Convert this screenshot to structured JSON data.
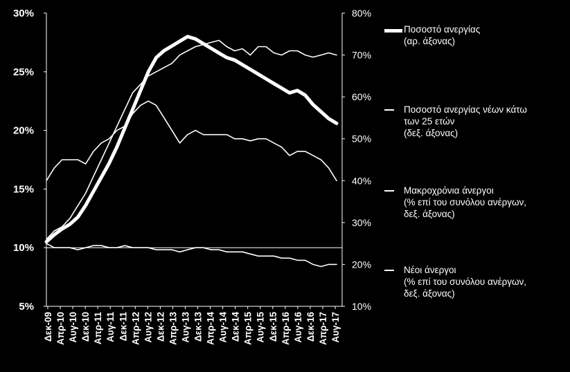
{
  "chart_data": {
    "type": "line",
    "x_ticks": [
      "Δεκ-09",
      "Απρ-10",
      "Αυγ-10",
      "Δεκ-10",
      "Απρ-11",
      "Αυγ-11",
      "Δεκ-11",
      "Απρ-12",
      "Αυγ-12",
      "Δεκ-12",
      "Απρ-13",
      "Αυγ-13",
      "Δεκ-13",
      "Απρ-14",
      "Αυγ-14",
      "Δεκ-14",
      "Απρ-15",
      "Αυγ-15",
      "Δεκ-15",
      "Απρ-16",
      "Αυγ-16",
      "Δεκ-16",
      "Απρ-17",
      "Αυγ-17"
    ],
    "y_left": {
      "ticks": [
        "5%",
        "10%",
        "15%",
        "20%",
        "25%",
        "30%"
      ],
      "range": [
        5,
        30
      ]
    },
    "y_right": {
      "ticks": [
        "10%",
        "20%",
        "30%",
        "40%",
        "50%",
        "60%",
        "70%",
        "80%"
      ],
      "range": [
        10,
        80
      ]
    },
    "gridline_left_value": 10,
    "series": [
      {
        "name": "Ποσοστό ανεργίας (αρ. άξονας)",
        "axis": "left",
        "stroke": "thick",
        "values": [
          10.5,
          11.1,
          11.6,
          12.0,
          12.6,
          13.6,
          14.8,
          16.0,
          17.2,
          18.6,
          20.2,
          21.8,
          23.4,
          25.0,
          26.2,
          26.8,
          27.2,
          27.6,
          28.0,
          27.8,
          27.4,
          27.0,
          26.6,
          26.2,
          26.0,
          25.6,
          25.2,
          24.8,
          24.4,
          24.0,
          23.6,
          23.2,
          23.4,
          23.0,
          22.2,
          21.6,
          21.0,
          20.6
        ]
      },
      {
        "name": "Ποσοστό ανεργίας νέων κάτω των 25 ετών (δεξ. άξονας)",
        "axis": "right",
        "stroke": "thin",
        "values": [
          26,
          28,
          29,
          31,
          34,
          37,
          41,
          45,
          49,
          53,
          57,
          61,
          63,
          65,
          66,
          67,
          68,
          70,
          71,
          72,
          72.5,
          73,
          73.5,
          72,
          71,
          71.5,
          70,
          72,
          72,
          70.5,
          70,
          71,
          71,
          70,
          69.5,
          70,
          70.5,
          70
        ]
      },
      {
        "name": "Μακροχρόνια άνεργοι (% επί του συνόλου ανέργων, δεξ. άξονας)",
        "axis": "right",
        "stroke": "thin",
        "values": [
          40,
          43,
          45,
          45,
          45,
          44,
          47,
          49,
          50,
          52,
          53,
          56,
          58,
          59,
          58,
          55,
          52,
          49,
          51,
          52,
          51,
          51,
          51,
          51,
          50,
          50,
          49.5,
          50,
          50,
          49,
          48,
          46,
          47,
          47,
          46,
          45,
          43,
          40
        ]
      },
      {
        "name": "Νέοι άνεργοι (% επί του συνόλου ανέργων, δεξ. άξονας)",
        "axis": "right",
        "stroke": "thin",
        "values": [
          25,
          24,
          24,
          24,
          23.5,
          24,
          24.5,
          24.5,
          24,
          24,
          24.5,
          24,
          24,
          24,
          23.5,
          23.5,
          23.5,
          23,
          23.5,
          24,
          24,
          23.5,
          23.5,
          23,
          23,
          23,
          22.5,
          22,
          22,
          22,
          21.5,
          21.5,
          21,
          21,
          20,
          19.5,
          20,
          20
        ]
      }
    ]
  },
  "legend": [
    {
      "lines": [
        "Ποσοστό ανεργίας",
        "(αρ. άξονας)"
      ]
    },
    {
      "lines": [
        "Ποσοστό ανεργίας νέων κάτω",
        "των 25 ετών",
        "(δεξ. άξονας)"
      ]
    },
    {
      "lines": [
        "Μακροχρόνια άνεργοι",
        "(% επί του συνόλου ανέργων,",
        "δεξ. άξονας)"
      ]
    },
    {
      "lines": [
        "Νέοι άνεργοι",
        "(% επί του συνόλου ανέργων,",
        "δεξ. άξονας)"
      ]
    }
  ]
}
